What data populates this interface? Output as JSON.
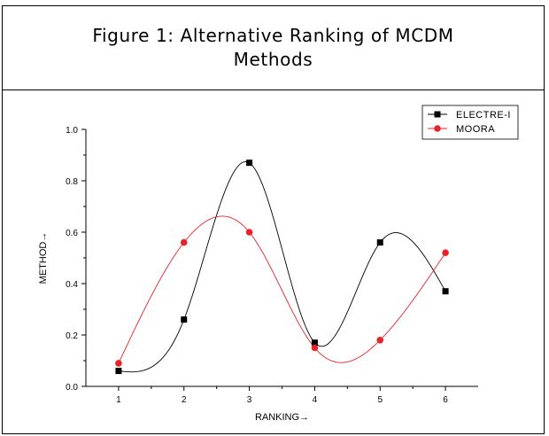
{
  "figure": {
    "caption": "Figure 1: Alternative Ranking of MCDM Methods"
  },
  "chart_data": {
    "type": "scatter",
    "title": "",
    "xlabel": "RANKING→",
    "ylabel": "METHOD→",
    "xlim": [
      0.5,
      6.5
    ],
    "ylim": [
      0,
      1.0
    ],
    "x_ticks": [
      1,
      2,
      3,
      4,
      5,
      6
    ],
    "y_ticks": [
      0.0,
      0.2,
      0.4,
      0.6,
      0.8,
      1.0
    ],
    "y_tick_labels": [
      "0.0",
      "0.2",
      "0.4",
      "0.6",
      "0.8",
      "1.0"
    ],
    "grid": false,
    "legend_position": "top-right",
    "series": [
      {
        "name": "ELECTRE-I",
        "x": [
          1,
          2,
          3,
          4,
          5,
          6
        ],
        "values": [
          0.06,
          0.26,
          0.87,
          0.17,
          0.56,
          0.37
        ],
        "color": "#000000",
        "marker": "square",
        "smoothed_line": true
      },
      {
        "name": "MOORA",
        "x": [
          1,
          2,
          3,
          4,
          5,
          6
        ],
        "values": [
          0.09,
          0.56,
          0.6,
          0.15,
          0.18,
          0.52
        ],
        "color": "#e8242a",
        "marker": "circle",
        "smoothed_line": true
      }
    ]
  }
}
